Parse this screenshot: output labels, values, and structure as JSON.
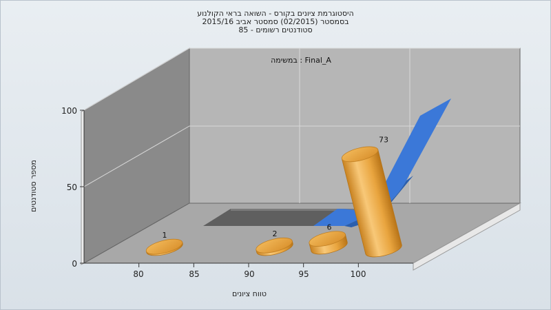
{
  "chart_data": {
    "type": "bar",
    "title_lines": [
      "היסטוגרמת ציונים בקורס - השואה בראי הקולנוע",
      "בסמסטר  (02/2015)  סמסטר אביב 2015/16",
      "סטודנטים רשומים - 85"
    ],
    "annotation": "במשימה : Final_A",
    "xlabel": "טווח ציונים",
    "ylabel": "מספר סטודנטים",
    "x_ticks": [
      "80",
      "85",
      "90",
      "95",
      "100"
    ],
    "y_ticks": [
      "0",
      "50",
      "100"
    ],
    "ylim": [
      0,
      100
    ],
    "categories": [
      "80",
      "90",
      "95",
      "100"
    ],
    "values": [
      1,
      2,
      6,
      73
    ],
    "data_labels": [
      "1",
      "2",
      "6",
      "73"
    ],
    "back_series": [
      {
        "shape": "area",
        "color": "#6b6b6b"
      },
      {
        "shape": "area",
        "color": "#3b78d8"
      }
    ],
    "bar_color": "#e9a53f",
    "grid": true,
    "view": "3d"
  }
}
